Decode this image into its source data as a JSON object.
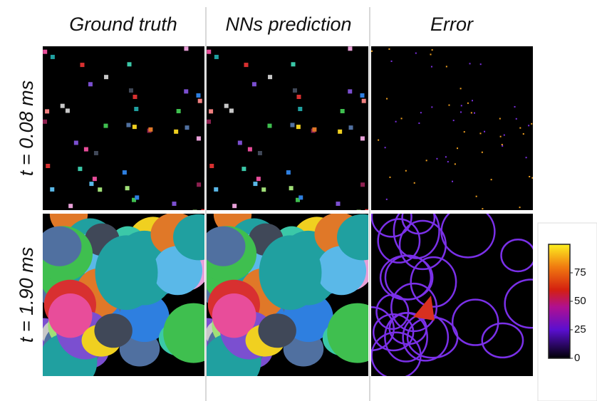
{
  "figure": {
    "columns": [
      "Ground truth",
      "NNs prediction",
      "Error"
    ],
    "rows": [
      "t = 0.08 ms",
      "t = 1.90 ms"
    ],
    "colorbar": {
      "lim": [
        0,
        100
      ],
      "ticks": [
        0,
        25,
        50,
        75
      ]
    }
  }
}
